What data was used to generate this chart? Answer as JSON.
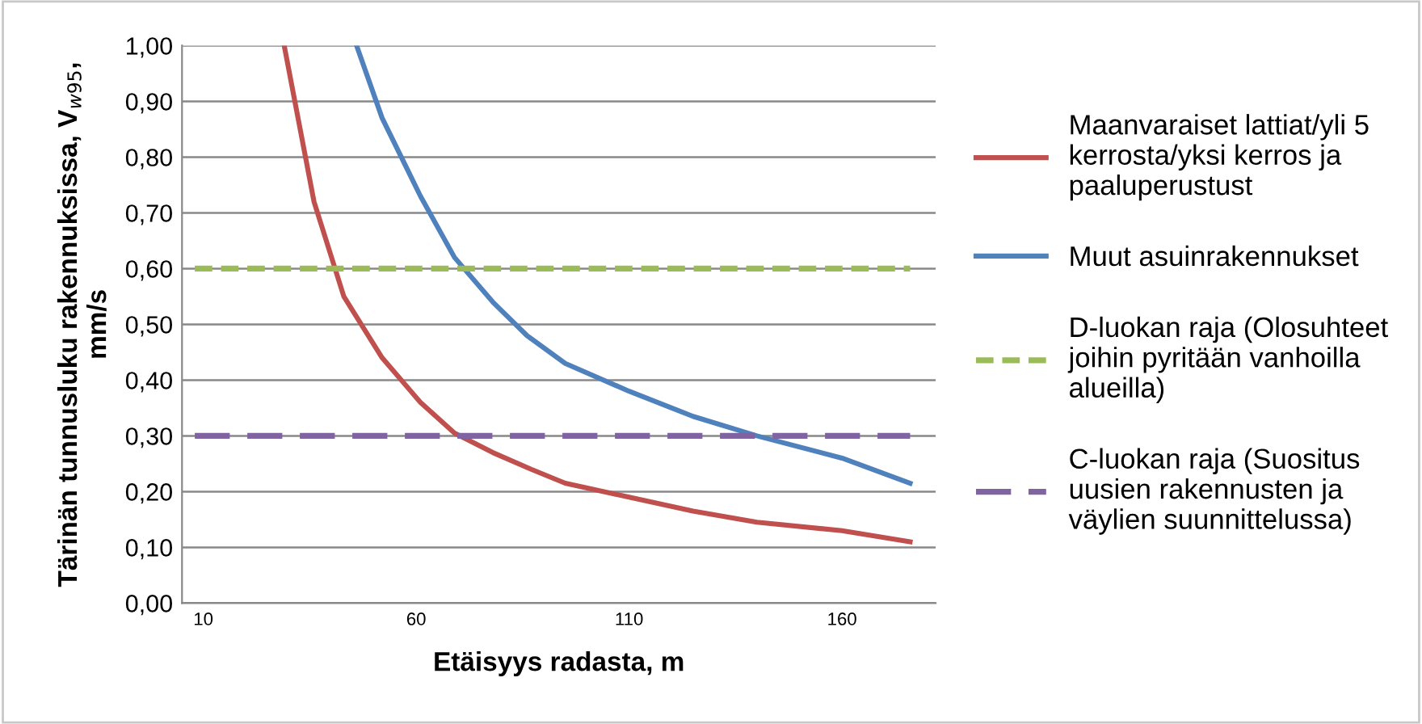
{
  "chart_data": {
    "type": "line",
    "xlabel": "Etäisyys radasta, m",
    "ylabel": "Tärinän tunnusluku rakennuksissa, V$_{w95}$,\nmm/s",
    "xlim": [
      5,
      182
    ],
    "xticks": [
      10,
      60,
      110,
      160
    ],
    "ylim": [
      0,
      1
    ],
    "yticks": [
      {
        "value": 0,
        "label": "0,00"
      },
      {
        "value": 0.1,
        "label": "0,10"
      },
      {
        "value": 0.2,
        "label": "0,20"
      },
      {
        "value": 0.3,
        "label": "0,30"
      },
      {
        "value": 0.4,
        "label": "0,40"
      },
      {
        "value": 0.5,
        "label": "0,50"
      },
      {
        "value": 0.6,
        "label": "0,60"
      },
      {
        "value": 0.7,
        "label": "0,70"
      },
      {
        "value": 0.8,
        "label": "0,80"
      },
      {
        "value": 0.9,
        "label": "0,90"
      },
      {
        "value": 1,
        "label": "1,00"
      }
    ],
    "grid": "y",
    "legend": "right",
    "marker": "none",
    "series": [
      {
        "name": "Maanvaraiset lattiat/yli 5\nkerrosta/yksi kerros ja\npaaluperustust",
        "color": "#c0504d",
        "line_style": "solid",
        "x": [
          29,
          36,
          43,
          52,
          61,
          69,
          78,
          87,
          95,
          110,
          125,
          140,
          160,
          176
        ],
        "values": [
          1.0,
          0.72,
          0.55,
          0.44,
          0.36,
          0.305,
          0.27,
          0.24,
          0.215,
          0.19,
          0.165,
          0.145,
          0.13,
          0.11
        ]
      },
      {
        "name": "Muut asuinrakennukset",
        "color": "#4f81bd",
        "line_style": "solid",
        "x": [
          46,
          52,
          61,
          69,
          78,
          86,
          95,
          110,
          125,
          140,
          160,
          176
        ],
        "values": [
          1.0,
          0.87,
          0.73,
          0.62,
          0.54,
          0.48,
          0.43,
          0.38,
          0.335,
          0.3,
          0.26,
          0.215
        ]
      },
      {
        "name": "D-luokan raja (Olosuhteet\njoihin pyritään vanhoilla\nalueilla)",
        "color": "#9bbb59",
        "line_style": "dotted",
        "x": [
          8,
          176
        ],
        "values": [
          0.6,
          0.6
        ]
      },
      {
        "name": "C-luokan raja (Suositus\nuusien rakennusten ja\nväylien suunnittelussa)",
        "color": "#8064a2",
        "line_style": "dashed",
        "x": [
          8,
          176
        ],
        "values": [
          0.3,
          0.3
        ]
      }
    ]
  }
}
